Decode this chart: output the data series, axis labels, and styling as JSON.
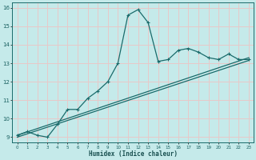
{
  "xlabel": "Humidex (Indice chaleur)",
  "ylabel": "",
  "xlim": [
    -0.5,
    23.5
  ],
  "ylim": [
    8.7,
    16.3
  ],
  "xticks": [
    0,
    1,
    2,
    3,
    4,
    5,
    6,
    7,
    8,
    9,
    10,
    11,
    12,
    13,
    14,
    15,
    16,
    17,
    18,
    19,
    20,
    21,
    22,
    23
  ],
  "yticks": [
    9,
    10,
    11,
    12,
    13,
    14,
    15,
    16
  ],
  "bg_color": "#c5eaea",
  "grid_color": "#e8c8c8",
  "line_color": "#1a6b6b",
  "line1_x": [
    0,
    1,
    2,
    3,
    4,
    5,
    6,
    7,
    8,
    9,
    10,
    11,
    12,
    13,
    14,
    15,
    16,
    17,
    18,
    19,
    20,
    21,
    22,
    23
  ],
  "line1_y": [
    9.1,
    9.3,
    9.1,
    9.0,
    9.7,
    10.5,
    10.5,
    11.1,
    11.5,
    12.0,
    13.0,
    15.6,
    15.9,
    15.2,
    13.1,
    13.2,
    13.7,
    13.8,
    13.6,
    13.3,
    13.2,
    13.5,
    13.2,
    13.2
  ],
  "line2_x": [
    0,
    23
  ],
  "line2_y": [
    9.1,
    13.3
  ],
  "line3_x": [
    0,
    23
  ],
  "line3_y": [
    9.0,
    13.15
  ]
}
